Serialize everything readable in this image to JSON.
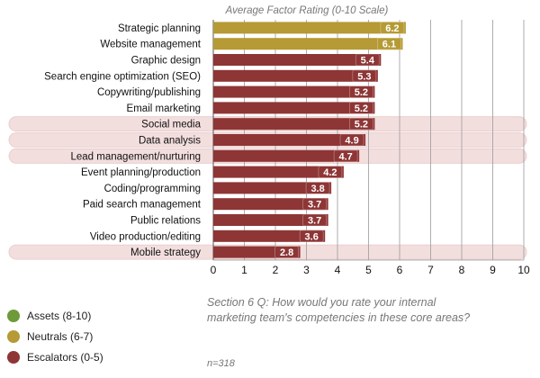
{
  "chart_data": {
    "type": "bar",
    "orientation": "horizontal",
    "title": "Average Factor Rating (0-10 Scale)",
    "xlim": [
      0,
      10
    ],
    "xticks": [
      0,
      1,
      2,
      3,
      4,
      5,
      6,
      7,
      8,
      9,
      10
    ],
    "grid": true,
    "categories": [
      "Strategic planning",
      "Website management",
      "Graphic design",
      "Search engine optimization (SEO)",
      "Copywriting/publishing",
      "Email marketing",
      "Social media",
      "Data analysis",
      "Lead management/nurturing",
      "Event planning/production",
      "Coding/programming",
      "Paid search management",
      "Public relations",
      "Video production/editing",
      "Mobile strategy"
    ],
    "values": [
      6.2,
      6.1,
      5.4,
      5.3,
      5.2,
      5.2,
      5.2,
      4.9,
      4.7,
      4.2,
      3.8,
      3.7,
      3.7,
      3.6,
      2.8
    ],
    "value_labels": [
      "6.2",
      "6.1",
      "5.4",
      "5.3",
      "5.2",
      "5.2",
      "5.2",
      "4.9",
      "4.7",
      "4.2",
      "3.8",
      "3.7",
      "3.7",
      "3.6",
      "2.8"
    ],
    "group": [
      "Neutrals",
      "Neutrals",
      "Escalators",
      "Escalators",
      "Escalators",
      "Escalators",
      "Escalators",
      "Escalators",
      "Escalators",
      "Escalators",
      "Escalators",
      "Escalators",
      "Escalators",
      "Escalators",
      "Escalators"
    ],
    "highlighted_rows": [
      "Social media",
      "Data analysis",
      "Lead management/nurturing",
      "Mobile strategy"
    ],
    "colors": {
      "Assets": "#6f9a3a",
      "Neutrals": "#b59a35",
      "Escalators": "#8e3535",
      "highlight": "#f3dede"
    }
  },
  "legend": {
    "items": [
      {
        "label": "Assets (8-10)",
        "color": "#6f9a3a"
      },
      {
        "label": "Neutrals (6-7)",
        "color": "#b59a35"
      },
      {
        "label": "Escalators (0-5)",
        "color": "#8e3535"
      }
    ]
  },
  "question": {
    "line1": "Section 6 Q: How would you rate your internal",
    "line2": "marketing team's competencies in these core areas?"
  },
  "sample_size": "n=318"
}
